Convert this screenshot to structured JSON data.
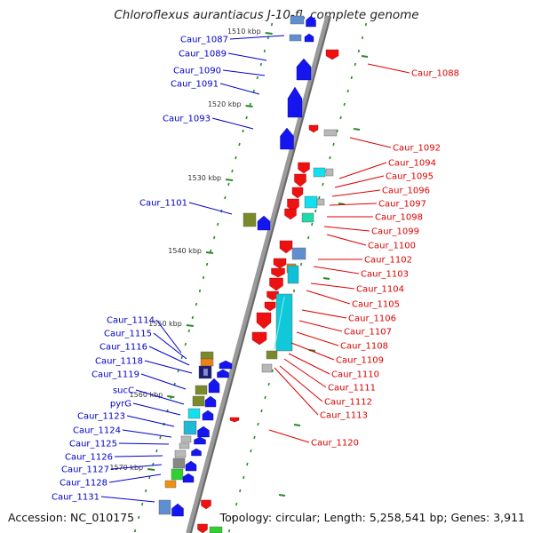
{
  "title": "Chloroflexus aurantiacus J-10-fl, complete genome",
  "footer": {
    "accession": "Accession: NC_010175",
    "topology": "Topology: circular; Length: 5,258,541 bp; Genes: 3,911"
  },
  "colors": {
    "forward_label": "#0000cc",
    "reverse_label": "#dd0000",
    "forward_arrow": "#1515f0",
    "reverse_arrow": "#ee1111",
    "tick": "#2a8a2a",
    "backbone": "#9a9a9a"
  },
  "kbp_ticks": [
    {
      "label": "1510 kbp",
      "mb": 1510
    },
    {
      "label": "1520 kbp",
      "mb": 1520
    },
    {
      "label": "1530 kbp",
      "mb": 1530
    },
    {
      "label": "1540 kbp",
      "mb": 1540
    },
    {
      "label": "1550 kbp",
      "mb": 1550
    },
    {
      "label": "1560 kbp",
      "mb": 1560
    },
    {
      "label": "1570 kbp",
      "mb": 1570
    }
  ],
  "forward_labels": [
    "Caur_1087",
    "Caur_1089",
    "Caur_1090",
    "Caur_1091",
    "Caur_1093",
    "Caur_1101",
    "Caur_1114",
    "Caur_1115",
    "Caur_1116",
    "Caur_1118",
    "Caur_1119",
    "sucC",
    "pyrG",
    "Caur_1123",
    "Caur_1124",
    "Caur_1125",
    "Caur_1126",
    "Caur_1127",
    "Caur_1128",
    "Caur_1131"
  ],
  "reverse_labels": [
    "Caur_1088",
    "Caur_1092",
    "Caur_1094",
    "Caur_1095",
    "Caur_1096",
    "Caur_1097",
    "Caur_1098",
    "Caur_1099",
    "Caur_1100",
    "Caur_1102",
    "Caur_1103",
    "Caur_1104",
    "Caur_1105",
    "Caur_1106",
    "Caur_1107",
    "Caur_1108",
    "Caur_1109",
    "Caur_1110",
    "Caur_1111",
    "Caur_1112",
    "Caur_1113",
    "Caur_1120"
  ]
}
